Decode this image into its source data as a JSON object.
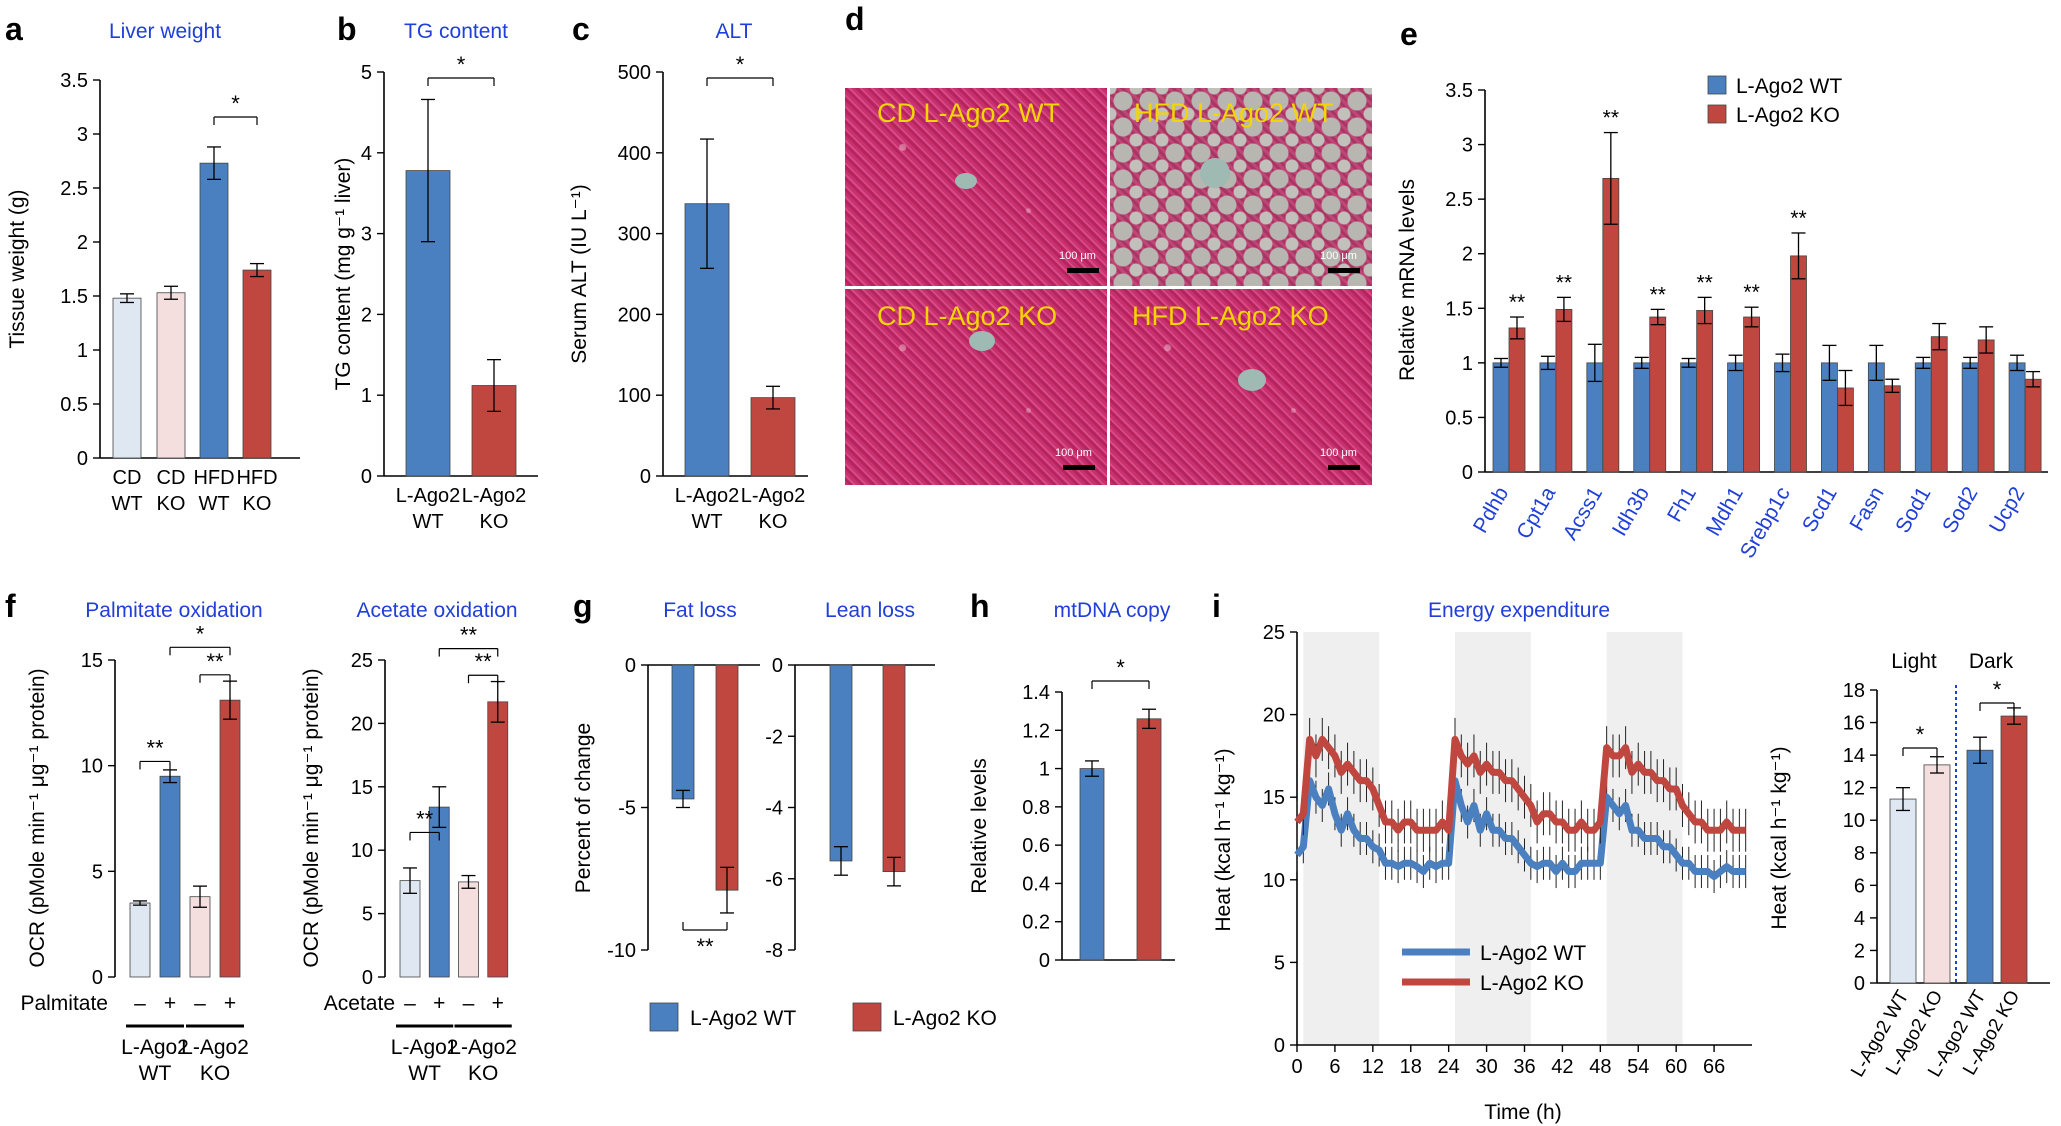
{
  "colors": {
    "wt": "#4a7fc0",
    "ko": "#c0473f",
    "wt_light": "#dfe7f3",
    "ko_light": "#f5dede",
    "title": "#1f3fd8",
    "axis": "#000000",
    "label_yellow": "#f2d600"
  },
  "panels": {
    "a": {
      "letter": "a",
      "title": "Liver weight"
    },
    "b": {
      "letter": "b",
      "title": "TG content"
    },
    "c": {
      "letter": "c",
      "title": "ALT"
    },
    "d": {
      "letter": "d",
      "labels": [
        "CD L-Ago2 WT",
        "HFD L-Ago2 WT",
        "CD L-Ago2 KO",
        "HFD L-Ago2 KO"
      ],
      "scale_bar": "100 μm"
    },
    "e": {
      "letter": "e"
    },
    "f": {
      "letter": "f",
      "titles": [
        "Palmitate oxidation",
        "Acetate oxidation"
      ],
      "row_labels": [
        "Palmitate",
        "Acetate"
      ],
      "signs": [
        "–",
        "+",
        "–",
        "+"
      ],
      "groups": [
        "L-Ago2",
        "WT",
        "L-Ago2",
        "KO"
      ]
    },
    "g": {
      "letter": "g",
      "titles": [
        "Fat loss",
        "Lean loss"
      ]
    },
    "h": {
      "letter": "h",
      "title": "mtDNA copy"
    },
    "i": {
      "letter": "i",
      "title": "Energy expenditure",
      "light": "Light",
      "dark": "Dark"
    }
  },
  "legend": {
    "wt": "L-Ago2 WT",
    "ko": "L-Ago2 KO"
  },
  "chart_data": [
    {
      "id": "a",
      "type": "bar",
      "title": "Liver weight",
      "ylabel": "Tissue weight (g)",
      "categories": [
        [
          "CD",
          "WT"
        ],
        [
          "CD",
          "KO"
        ],
        [
          "HFD",
          "WT"
        ],
        [
          "HFD",
          "KO"
        ]
      ],
      "values": [
        1.48,
        1.53,
        2.73,
        1.74
      ],
      "errors": [
        0.04,
        0.06,
        0.15,
        0.06
      ],
      "ylim": [
        0,
        3.5
      ],
      "yticks": [
        "0",
        "0.5",
        "1",
        "1.5",
        "2",
        "2.5",
        "3",
        "3.5"
      ],
      "significance": [
        {
          "pair": [
            2,
            3
          ],
          "label": "*"
        }
      ]
    },
    {
      "id": "b",
      "type": "bar",
      "title": "TG content",
      "ylabel": "TG content (mg g⁻¹ liver)",
      "categories": [
        [
          "L-Ago2",
          "WT"
        ],
        [
          "L-Ago2",
          "KO"
        ]
      ],
      "values": [
        3.78,
        1.12
      ],
      "errors": [
        0.88,
        0.32
      ],
      "ylim": [
        0,
        5
      ],
      "yticks": [
        "0",
        "1",
        "2",
        "3",
        "4",
        "5"
      ],
      "significance": [
        {
          "pair": [
            0,
            1
          ],
          "label": "*"
        }
      ]
    },
    {
      "id": "c",
      "type": "bar",
      "title": "ALT",
      "ylabel": "Serum ALT (IU L⁻¹)",
      "categories": [
        [
          "L-Ago2",
          "WT"
        ],
        [
          "L-Ago2",
          "KO"
        ]
      ],
      "values": [
        337,
        97
      ],
      "errors": [
        80,
        14
      ],
      "ylim": [
        0,
        500
      ],
      "yticks": [
        "0",
        "100",
        "200",
        "300",
        "400",
        "500"
      ],
      "significance": [
        {
          "pair": [
            0,
            1
          ],
          "label": "*"
        }
      ]
    },
    {
      "id": "e",
      "type": "bar",
      "ylabel": "Relative mRNA levels",
      "categories": [
        "Pdhb",
        "Cpt1a",
        "Acss1",
        "Idh3b",
        "Fh1",
        "Mdh1",
        "Srebp1c",
        "Scd1",
        "Fasn",
        "Sod1",
        "Sod2",
        "Ucp2"
      ],
      "series": [
        {
          "name": "L-Ago2 WT",
          "values": [
            1.0,
            1.0,
            1.0,
            1.0,
            1.0,
            1.0,
            1.0,
            1.0,
            1.0,
            1.0,
            1.0,
            1.0
          ],
          "errors": [
            0.04,
            0.06,
            0.17,
            0.05,
            0.04,
            0.07,
            0.08,
            0.16,
            0.16,
            0.05,
            0.05,
            0.07
          ]
        },
        {
          "name": "L-Ago2 KO",
          "values": [
            1.32,
            1.49,
            2.69,
            1.42,
            1.48,
            1.42,
            1.98,
            0.77,
            0.79,
            1.24,
            1.21,
            0.85
          ],
          "errors": [
            0.1,
            0.11,
            0.42,
            0.07,
            0.12,
            0.09,
            0.21,
            0.16,
            0.06,
            0.12,
            0.12,
            0.07
          ]
        }
      ],
      "ylim": [
        0,
        3.5
      ],
      "yticks": [
        "0",
        "0.5",
        "1",
        "1.5",
        "2",
        "2.5",
        "3",
        "3.5"
      ],
      "significance": [
        "**",
        "**",
        "**",
        "**",
        "**",
        "**",
        "**",
        "",
        "",
        "",
        "",
        ""
      ]
    },
    {
      "id": "f1",
      "type": "bar",
      "title": "Palmitate oxidation",
      "ylabel": "OCR (pMole min⁻¹ μg⁻¹ protein)",
      "values": [
        3.5,
        9.5,
        3.8,
        13.1
      ],
      "errors": [
        0.1,
        0.3,
        0.5,
        0.9
      ],
      "ylim": [
        0,
        15
      ],
      "yticks": [
        "0",
        "5",
        "10",
        "15"
      ],
      "significance": [
        {
          "pair": [
            0,
            1
          ],
          "label": "**"
        },
        {
          "pair": [
            2,
            3
          ],
          "label": "**"
        },
        {
          "pair": [
            1,
            3
          ],
          "label": "*"
        }
      ]
    },
    {
      "id": "f2",
      "type": "bar",
      "title": "Acetate oxidation",
      "ylabel": "OCR (pMole min⁻¹ μg⁻¹ protein)",
      "values": [
        7.6,
        13.4,
        7.5,
        21.7
      ],
      "errors": [
        1.0,
        1.6,
        0.5,
        1.6
      ],
      "ylim": [
        0,
        25
      ],
      "yticks": [
        "0",
        "5",
        "10",
        "15",
        "20",
        "25"
      ],
      "significance": [
        {
          "pair": [
            0,
            1
          ],
          "label": "**"
        },
        {
          "pair": [
            2,
            3
          ],
          "label": "**"
        },
        {
          "pair": [
            1,
            3
          ],
          "label": "**"
        }
      ]
    },
    {
      "id": "g1",
      "type": "bar",
      "title": "Fat loss",
      "ylabel": "Percent of change",
      "values": [
        -4.7,
        -7.9
      ],
      "errors": [
        0.3,
        0.8
      ],
      "ylim": [
        -10,
        0
      ],
      "yticks": [
        "0",
        "-5",
        "-10"
      ],
      "significance": [
        {
          "pair": [
            0,
            1
          ],
          "label": "**"
        }
      ]
    },
    {
      "id": "g2",
      "type": "bar",
      "title": "Lean loss",
      "values": [
        -5.5,
        -5.8
      ],
      "errors": [
        0.4,
        0.4
      ],
      "ylim": [
        -8,
        0
      ],
      "yticks": [
        "0",
        "-2",
        "-4",
        "-6",
        "-8"
      ]
    },
    {
      "id": "h",
      "type": "bar",
      "title": "mtDNA copy",
      "ylabel": "Relative levels",
      "values": [
        1.0,
        1.26
      ],
      "errors": [
        0.04,
        0.05
      ],
      "ylim": [
        0,
        1.4
      ],
      "yticks": [
        "0",
        "0.2",
        "0.4",
        "0.6",
        "0.8",
        "1",
        "1.2",
        "1.4"
      ],
      "significance": [
        {
          "pair": [
            0,
            1
          ],
          "label": "*"
        }
      ]
    },
    {
      "id": "i1",
      "type": "line",
      "title": "Energy expenditure",
      "xlabel": "Time (h)",
      "ylabel": "Heat (kcal h⁻¹ kg⁻¹)",
      "xlim": [
        0,
        72
      ],
      "ylim": [
        0,
        25
      ],
      "xticks": [
        "0",
        "6",
        "12",
        "18",
        "24",
        "30",
        "36",
        "42",
        "48",
        "54",
        "60",
        "66"
      ],
      "yticks": [
        "0",
        "5",
        "10",
        "15",
        "20",
        "25"
      ],
      "dark_periods": [
        [
          1,
          13
        ],
        [
          25,
          37
        ],
        [
          49,
          61
        ]
      ],
      "series": [
        {
          "name": "L-Ago2 WT",
          "x": [
            0,
            1,
            2,
            3,
            4,
            5,
            6,
            7,
            8,
            9,
            10,
            11,
            12,
            13,
            14,
            15,
            16,
            17,
            18,
            19,
            20,
            21,
            22,
            23,
            24,
            25,
            26,
            27,
            28,
            29,
            30,
            31,
            32,
            33,
            34,
            35,
            36,
            37,
            38,
            39,
            40,
            41,
            42,
            43,
            44,
            45,
            46,
            47,
            48,
            49,
            50,
            51,
            52,
            53,
            54,
            55,
            56,
            57,
            58,
            59,
            60,
            61,
            62,
            63,
            64,
            65,
            66,
            67,
            68,
            69,
            70,
            71
          ],
          "y": [
            11.5,
            12.0,
            16.0,
            15.0,
            14.5,
            15.5,
            14.0,
            13.0,
            14.0,
            13.0,
            12.5,
            12.5,
            12.0,
            11.8,
            11.0,
            11.0,
            10.8,
            11.0,
            11.0,
            10.8,
            10.5,
            11.0,
            10.8,
            11.0,
            11.0,
            16.0,
            14.5,
            13.5,
            14.5,
            13.0,
            14.0,
            13.0,
            13.0,
            12.5,
            12.5,
            12.0,
            11.5,
            11.0,
            10.8,
            11.0,
            11.0,
            10.5,
            11.0,
            10.5,
            10.5,
            11.0,
            11.0,
            11.0,
            11.0,
            15.0,
            14.5,
            14.0,
            14.5,
            13.0,
            13.0,
            12.5,
            12.5,
            12.5,
            12.0,
            12.0,
            11.5,
            11.0,
            11.0,
            10.5,
            10.5,
            10.5,
            10.2,
            10.5,
            10.8,
            10.5,
            10.5,
            10.5
          ]
        },
        {
          "name": "L-Ago2 KO",
          "x": [
            0,
            1,
            2,
            3,
            4,
            5,
            6,
            7,
            8,
            9,
            10,
            11,
            12,
            13,
            14,
            15,
            16,
            17,
            18,
            19,
            20,
            21,
            22,
            23,
            24,
            25,
            26,
            27,
            28,
            29,
            30,
            31,
            32,
            33,
            34,
            35,
            36,
            37,
            38,
            39,
            40,
            41,
            42,
            43,
            44,
            45,
            46,
            47,
            48,
            49,
            50,
            51,
            52,
            53,
            54,
            55,
            56,
            57,
            58,
            59,
            60,
            61,
            62,
            63,
            64,
            65,
            66,
            67,
            68,
            69,
            70,
            71
          ],
          "y": [
            13.5,
            14.0,
            18.5,
            17.5,
            18.5,
            18.0,
            17.5,
            16.5,
            17.0,
            16.5,
            16.0,
            16.0,
            15.5,
            14.5,
            13.5,
            13.5,
            13.0,
            13.5,
            13.5,
            13.0,
            13.0,
            13.0,
            13.0,
            13.5,
            13.0,
            18.5,
            17.5,
            17.0,
            17.5,
            16.5,
            17.0,
            16.5,
            16.5,
            16.0,
            16.0,
            15.5,
            15.0,
            14.5,
            13.5,
            14.0,
            14.0,
            13.5,
            13.5,
            13.0,
            13.0,
            13.5,
            13.0,
            13.0,
            13.5,
            18.0,
            17.5,
            17.5,
            18.0,
            16.5,
            17.0,
            16.5,
            16.5,
            16.0,
            16.0,
            15.5,
            15.5,
            14.5,
            14.0,
            13.5,
            13.5,
            13.0,
            13.0,
            13.0,
            13.5,
            13.0,
            13.0,
            13.0
          ]
        }
      ]
    },
    {
      "id": "i2",
      "type": "bar",
      "ylabel": "Heat (kcal h⁻¹ kg⁻¹)",
      "categories": [
        "L-Ago2 WT",
        "L-Ago2 KO",
        "L-Ago2 WT",
        "L-Ago2 KO"
      ],
      "values": [
        11.3,
        13.4,
        14.3,
        16.4
      ],
      "errors": [
        0.7,
        0.5,
        0.8,
        0.5
      ],
      "ylim": [
        0,
        18
      ],
      "yticks": [
        "0",
        "2",
        "4",
        "6",
        "8",
        "10",
        "12",
        "14",
        "16",
        "18"
      ],
      "significance": [
        {
          "pair": [
            0,
            1
          ],
          "label": "*"
        },
        {
          "pair": [
            2,
            3
          ],
          "label": "*"
        }
      ]
    }
  ]
}
